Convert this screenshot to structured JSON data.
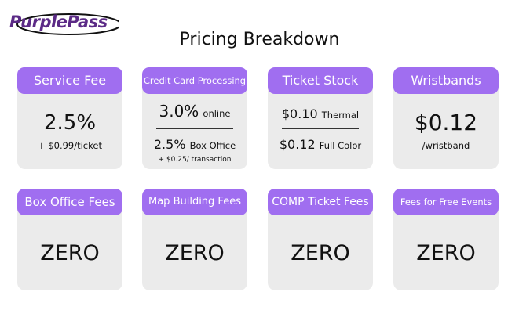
{
  "logo": {
    "text": "PurplePass"
  },
  "page": {
    "title": "Pricing Breakdown"
  },
  "cards": {
    "service_fee": {
      "label": "Service Fee",
      "value": "2.5%",
      "sub": "+ $0.99/ticket"
    },
    "credit_card": {
      "label": "Credit Card Processing",
      "online_value": "3.0%",
      "online_unit": "online",
      "box_value": "2.5%",
      "box_unit": "Box Office",
      "box_sub": "+ $0.25/ transaction"
    },
    "ticket_stock": {
      "label": "Ticket Stock",
      "thermal_value": "$0.10",
      "thermal_unit": "Thermal",
      "color_value": "$0.12",
      "color_unit": "Full Color"
    },
    "wristbands": {
      "label": "Wristbands",
      "value": "$0.12",
      "sub": "/wristband"
    },
    "box_office_fees": {
      "label": "Box Office Fees",
      "value": "ZERO"
    },
    "map_building_fees": {
      "label": "Map Building Fees",
      "value": "ZERO"
    },
    "comp_ticket_fees": {
      "label": "COMP Ticket Fees",
      "value": "ZERO"
    },
    "free_event_fees": {
      "label": "Fees for Free Events",
      "value": "ZERO"
    }
  },
  "colors": {
    "accent": "#a06ef0",
    "brand": "#5b2a86",
    "card_bg": "#ebebeb"
  }
}
